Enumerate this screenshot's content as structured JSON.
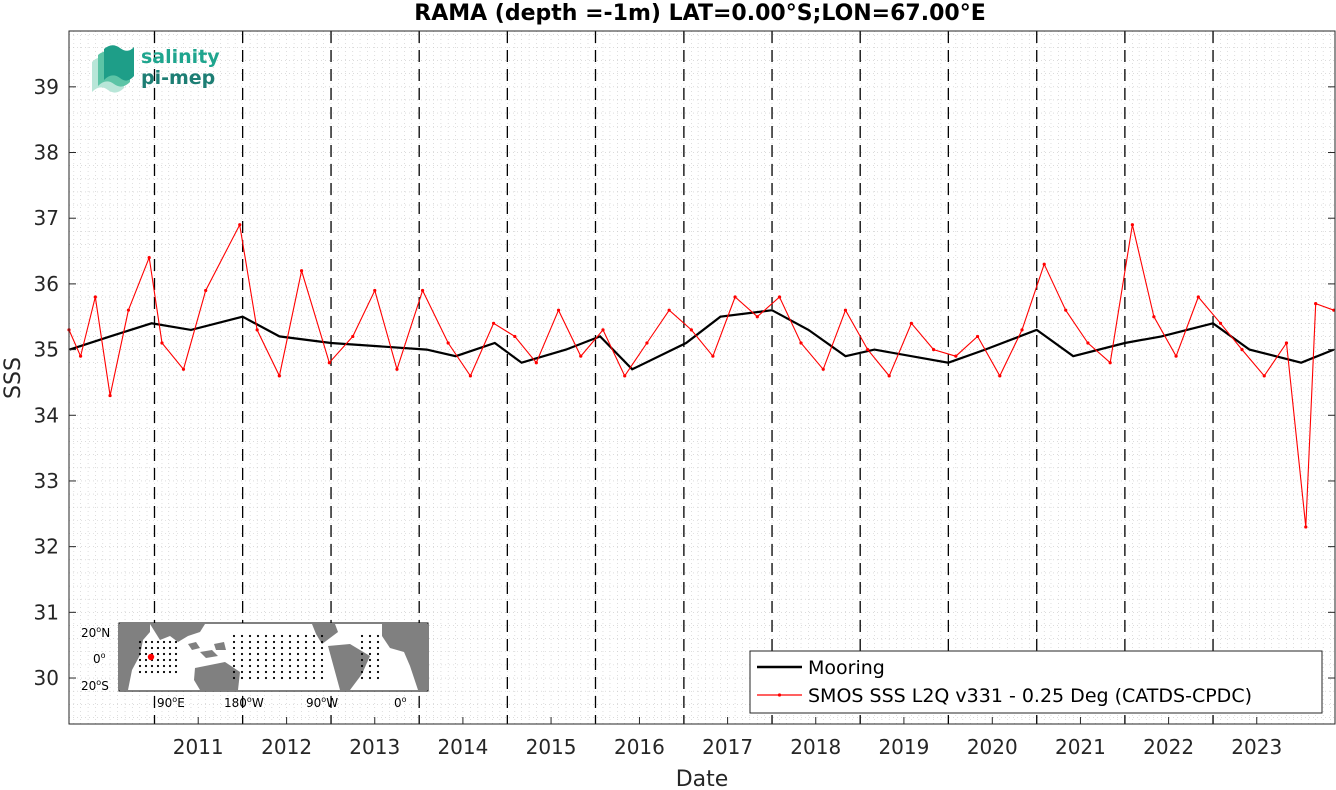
{
  "chart_data": {
    "type": "line",
    "title": "RAMA (depth =-1m) LAT=0.00°S;LON=67.00°E",
    "xlabel": "Date",
    "ylabel": "SSS",
    "x_ticks": [
      "2011",
      "2012",
      "2013",
      "2014",
      "2015",
      "2016",
      "2017",
      "2018",
      "2019",
      "2020",
      "2021",
      "2022",
      "2023"
    ],
    "y_ticks": [
      "30",
      "31",
      "32",
      "33",
      "34",
      "35",
      "36",
      "37",
      "38",
      "39"
    ],
    "xlim": [
      "2010-01-12",
      "2024-05-20"
    ],
    "ylim": [
      29.3,
      39.85
    ],
    "grid": "minor dotted",
    "legend_location": "bottom-right",
    "vertical_dashed_lines_at": [
      "2011-01-01",
      "2012-01-01",
      "2013-01-01",
      "2014-01-01",
      "2015-01-01",
      "2016-01-01",
      "2017-01-01",
      "2018-01-01",
      "2019-01-01",
      "2020-01-01",
      "2021-01-01",
      "2022-01-01",
      "2023-01-01"
    ],
    "series": [
      {
        "name": "Mooring",
        "color": "#000000",
        "x": [
          "2010-01-15",
          "2010-07-01",
          "2010-12-20",
          "2011-06-01",
          "2012-01-01",
          "2012-06-01",
          "2013-01-01",
          "2014-02-01",
          "2014-06-01",
          "2014-11-10",
          "2015-03-01",
          "2015-09-01",
          "2016-01-20",
          "2016-06-01",
          "2017-01-10",
          "2017-06-01",
          "2018-01-01",
          "2018-06-01",
          "2018-11-01",
          "2019-03-01",
          "2020-01-01",
          "2020-06-01",
          "2021-01-01",
          "2021-06-01",
          "2022-01-01",
          "2022-06-01",
          "2023-01-01",
          "2023-06-01",
          "2024-01-01",
          "2024-05-15"
        ],
        "y": [
          35.0,
          35.2,
          35.4,
          35.3,
          35.5,
          35.2,
          35.1,
          35.0,
          34.9,
          35.1,
          34.8,
          35.0,
          35.2,
          34.7,
          35.1,
          35.5,
          35.6,
          35.3,
          34.9,
          35.0,
          34.8,
          35.0,
          35.3,
          34.9,
          35.1,
          35.2,
          35.4,
          35.0,
          34.8,
          35.0
        ]
      },
      {
        "name": "SMOS SSS L2Q v331 - 0.25 Deg (CATDS-CPDC)",
        "color": "#ff0000",
        "x": [
          "2010-01-12",
          "2010-03-01",
          "2010-05-01",
          "2010-07-01",
          "2010-09-15",
          "2010-12-10",
          "2011-02-01",
          "2011-05-01",
          "2011-08-01",
          "2011-12-20",
          "2012-03-01",
          "2012-06-01",
          "2012-09-01",
          "2012-12-25",
          "2013-04-01",
          "2013-07-01",
          "2013-10-01",
          "2014-01-15",
          "2014-05-01",
          "2014-08-01",
          "2014-11-05",
          "2015-02-01",
          "2015-05-01",
          "2015-08-01",
          "2015-11-01",
          "2016-02-01",
          "2016-05-01",
          "2016-08-01",
          "2016-11-01",
          "2017-02-01",
          "2017-05-01",
          "2017-08-01",
          "2017-11-01",
          "2018-02-01",
          "2018-05-01",
          "2018-08-01",
          "2018-11-01",
          "2019-02-01",
          "2019-05-01",
          "2019-08-01",
          "2019-11-01",
          "2020-02-01",
          "2020-05-01",
          "2020-08-01",
          "2020-11-01",
          "2021-02-01",
          "2021-05-01",
          "2021-08-01",
          "2021-11-01",
          "2022-02-01",
          "2022-05-01",
          "2022-08-01",
          "2022-11-01",
          "2023-02-01",
          "2023-05-01",
          "2023-08-01",
          "2023-11-01",
          "2024-01-20",
          "2024-03-01",
          "2024-05-15"
        ],
        "y": [
          35.3,
          34.9,
          35.8,
          34.3,
          35.6,
          36.4,
          35.1,
          34.7,
          35.9,
          36.9,
          35.3,
          34.6,
          36.2,
          34.8,
          35.2,
          35.9,
          34.7,
          35.9,
          35.1,
          34.6,
          35.4,
          35.2,
          34.8,
          35.6,
          34.9,
          35.3,
          34.6,
          35.1,
          35.6,
          35.3,
          34.9,
          35.8,
          35.5,
          35.8,
          35.1,
          34.7,
          35.6,
          35.0,
          34.6,
          35.4,
          35.0,
          34.9,
          35.2,
          34.6,
          35.3,
          36.3,
          35.6,
          35.1,
          34.8,
          36.9,
          35.5,
          34.9,
          35.8,
          35.4,
          35.0,
          34.6,
          35.1,
          32.3,
          35.7,
          35.6
        ]
      }
    ]
  },
  "logo": {
    "line1": "salinity",
    "line2": "pi-mep"
  },
  "inset_map": {
    "lat_labels": [
      "20",
      "0",
      "20"
    ],
    "lat_suffix": [
      "N",
      "",
      "S"
    ],
    "lon_labels": [
      "90",
      "180",
      "90",
      "0"
    ],
    "lon_suffix": [
      "E",
      "W",
      "W",
      ""
    ],
    "degree_symbol": "o"
  }
}
